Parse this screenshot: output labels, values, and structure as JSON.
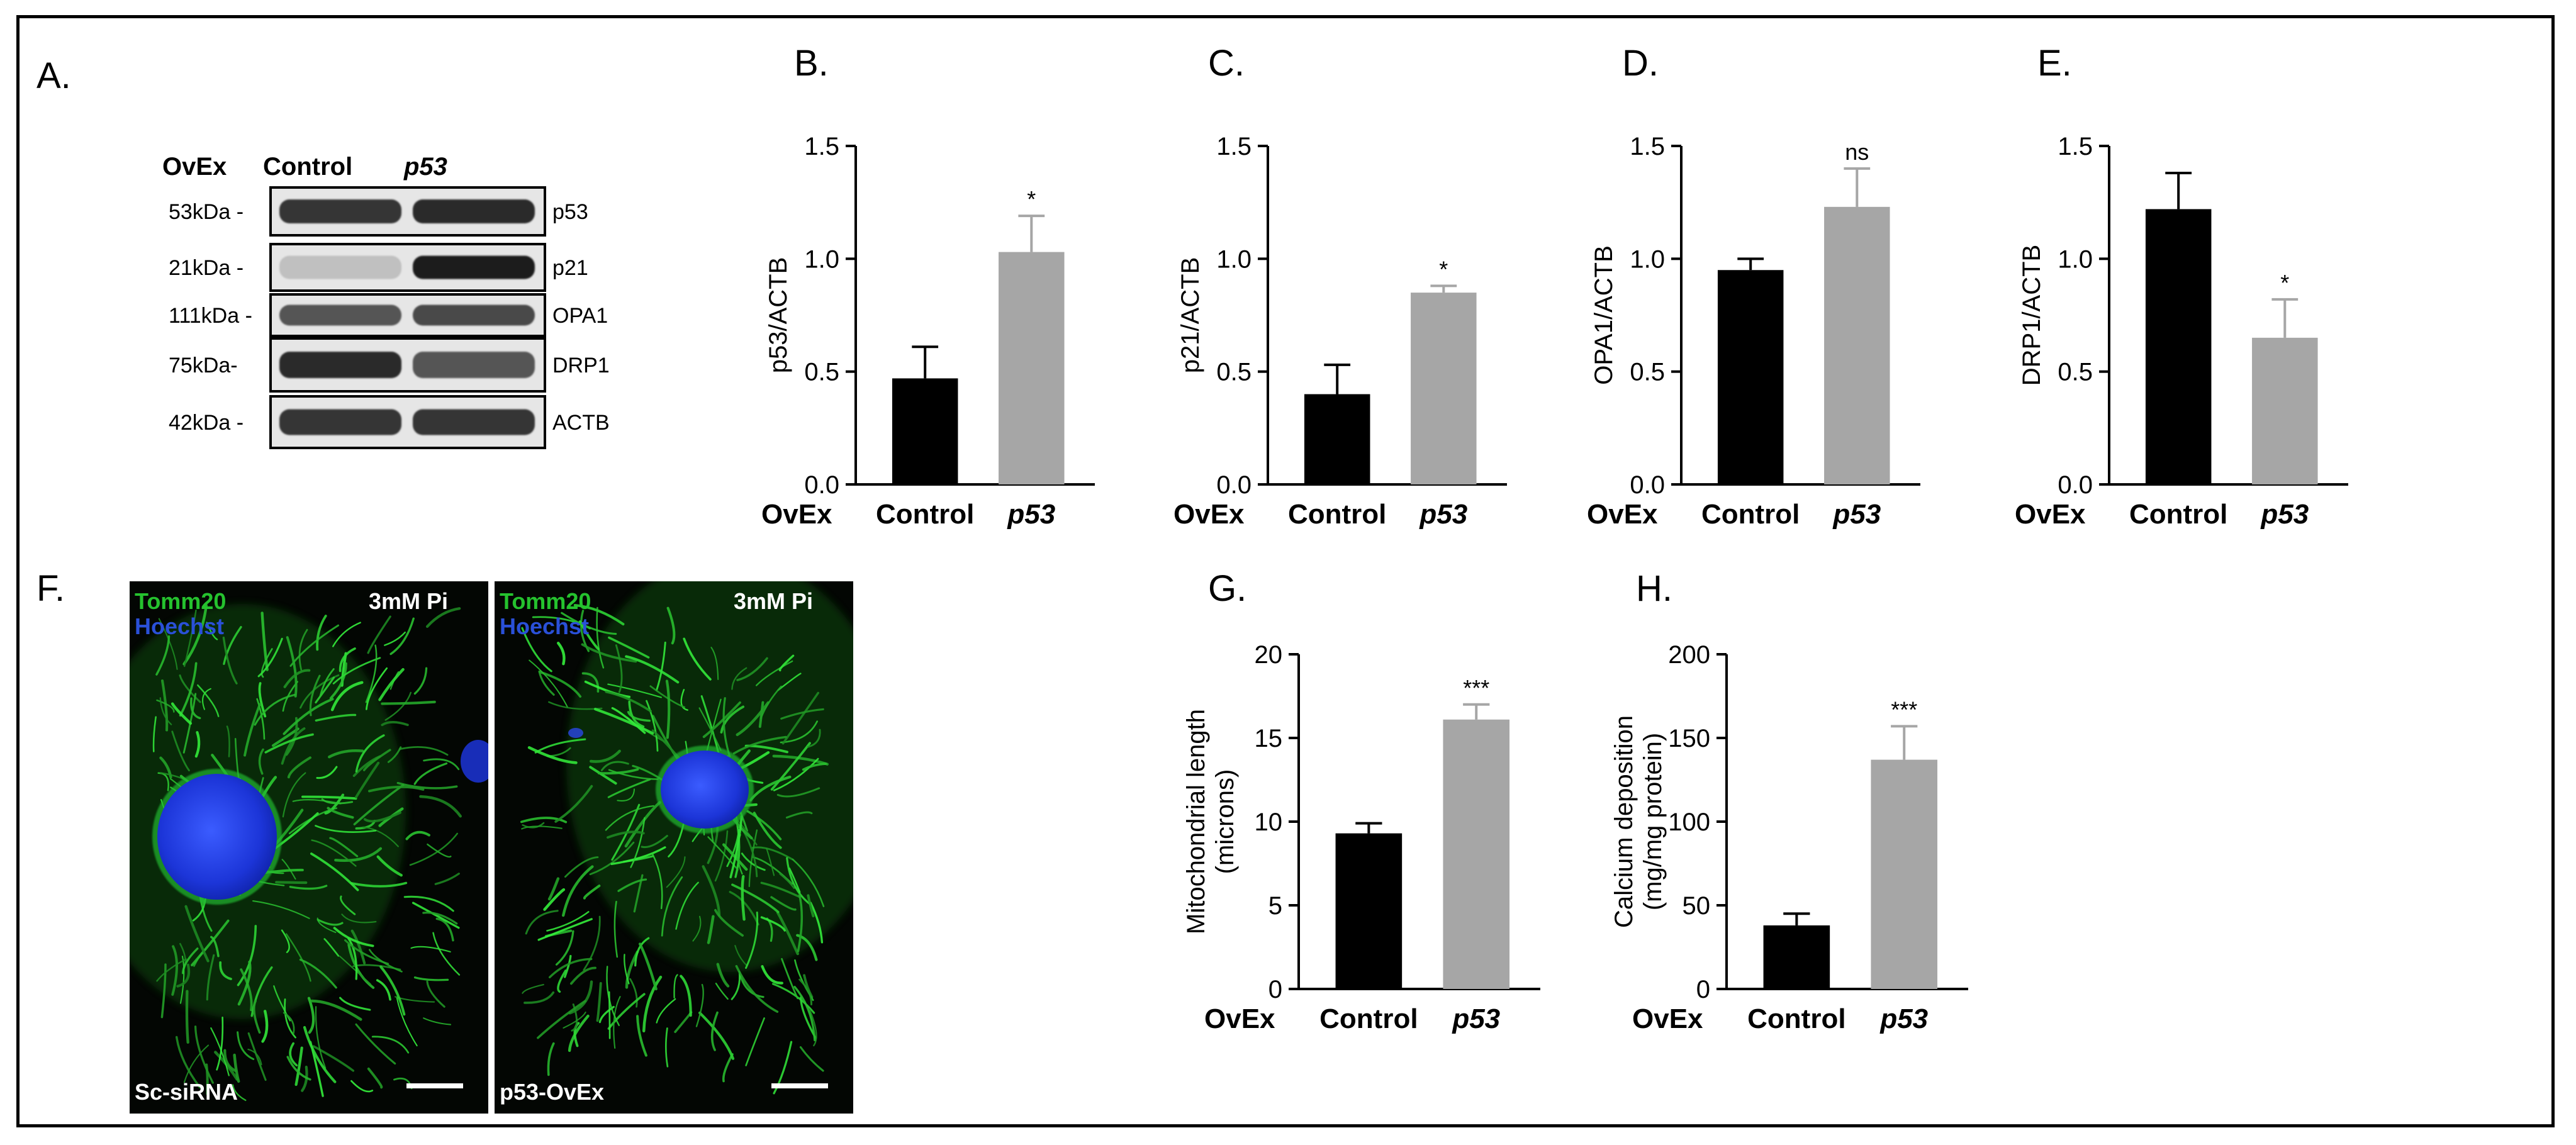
{
  "panels": {
    "a": "A.",
    "b": "B.",
    "c": "C.",
    "d": "D.",
    "e": "E.",
    "f": "F.",
    "g": "G.",
    "h": "H."
  },
  "blot": {
    "group_label": "OvEx",
    "col_control": "Control",
    "col_p53": "p53",
    "rows": [
      {
        "mw": "53kDa -",
        "protein": "p53",
        "control_intensity": 0.85,
        "p53_intensity": 0.9
      },
      {
        "mw": "21kDa -",
        "protein": "p21",
        "control_intensity": 0.2,
        "p53_intensity": 0.95
      },
      {
        "mw": "111kDa -",
        "protein": "OPA1",
        "control_intensity": 0.7,
        "p53_intensity": 0.75
      },
      {
        "mw": "75kDa-",
        "protein": "DRP1",
        "control_intensity": 0.9,
        "p53_intensity": 0.7
      },
      {
        "mw": "42kDa -",
        "protein": "ACTB",
        "control_intensity": 0.85,
        "p53_intensity": 0.85
      }
    ]
  },
  "micrographs": [
    {
      "stain1": "Tomm20",
      "stain2": "Hoechst",
      "condition": "3mM Pi",
      "label": "Sc-siRNA"
    },
    {
      "stain1": "Tomm20",
      "stain2": "Hoechst",
      "condition": "3mM Pi",
      "label": "p53-OvEx"
    }
  ],
  "colors": {
    "control_bar": "#000000",
    "p53_bar": "#a6a6a6",
    "mito_green": "#22c02a",
    "nucleus_blue": "#1f3fe0",
    "hoechst_label": "#2a50d8",
    "tomm20_label": "#25c22e"
  },
  "chart_data": [
    {
      "id": "B",
      "type": "bar",
      "group_label": "OvEx",
      "categories": [
        "Control",
        "p53"
      ],
      "values": [
        0.47,
        1.03
      ],
      "errors": [
        0.14,
        0.16
      ],
      "significance": [
        "",
        "*"
      ],
      "ylabel": "p53/ACTB",
      "ylim": [
        0,
        1.5
      ],
      "yticks": [
        "0.0",
        "0.5",
        "1.0",
        "1.5"
      ]
    },
    {
      "id": "C",
      "type": "bar",
      "group_label": "OvEx",
      "categories": [
        "Control",
        "p53"
      ],
      "values": [
        0.4,
        0.85
      ],
      "errors": [
        0.13,
        0.03
      ],
      "significance": [
        "",
        "*"
      ],
      "ylabel": "p21/ACTB",
      "ylim": [
        0,
        1.5
      ],
      "yticks": [
        "0.0",
        "0.5",
        "1.0",
        "1.5"
      ]
    },
    {
      "id": "D",
      "type": "bar",
      "group_label": "OvEx",
      "categories": [
        "Control",
        "p53"
      ],
      "values": [
        0.95,
        1.23
      ],
      "errors": [
        0.05,
        0.17
      ],
      "significance": [
        "",
        "ns"
      ],
      "ylabel": "OPA1/ACTB",
      "ylim": [
        0,
        1.5
      ],
      "yticks": [
        "0.0",
        "0.5",
        "1.0",
        "1.5"
      ]
    },
    {
      "id": "E",
      "type": "bar",
      "group_label": "OvEx",
      "categories": [
        "Control",
        "p53"
      ],
      "values": [
        1.22,
        0.65
      ],
      "errors": [
        0.16,
        0.17
      ],
      "significance": [
        "",
        "*"
      ],
      "ylabel": "DRP1/ACTB",
      "ylim": [
        0,
        1.5
      ],
      "yticks": [
        "0.0",
        "0.5",
        "1.0",
        "1.5"
      ]
    },
    {
      "id": "G",
      "type": "bar",
      "group_label": "OvEx",
      "categories": [
        "Control",
        "p53"
      ],
      "values": [
        9.3,
        16.1
      ],
      "errors": [
        0.6,
        0.9
      ],
      "significance": [
        "",
        "***"
      ],
      "ylabel": "Mitochondrial length",
      "ylabel2": "(microns)",
      "ylim": [
        0,
        20
      ],
      "yticks": [
        "0",
        "5",
        "10",
        "15",
        "20"
      ]
    },
    {
      "id": "H",
      "type": "bar",
      "group_label": "OvEx",
      "categories": [
        "Control",
        "p53"
      ],
      "values": [
        38,
        137
      ],
      "errors": [
        7,
        20
      ],
      "significance": [
        "",
        "***"
      ],
      "ylabel": "Calcium deposition",
      "ylabel2": "(mg/mg protein)",
      "ylim": [
        0,
        200
      ],
      "yticks": [
        "0",
        "50",
        "100",
        "150",
        "200"
      ]
    }
  ]
}
